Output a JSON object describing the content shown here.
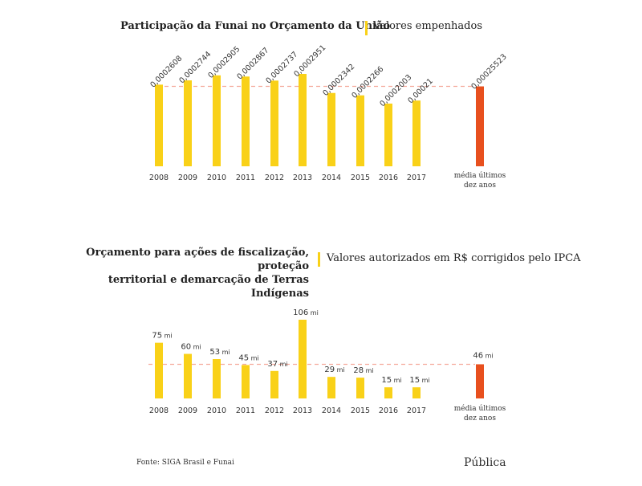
{
  "chart_data": [
    {
      "type": "bar",
      "title": "Participação da Funai no Orçamento da União",
      "subtitle": "Valores empenhados",
      "categories": [
        "2008",
        "2009",
        "2010",
        "2011",
        "2012",
        "2013",
        "2014",
        "2015",
        "2016",
        "2017"
      ],
      "values": [
        0.0002608,
        0.0002744,
        0.0002905,
        0.0002867,
        0.0002737,
        0.0002951,
        0.0002342,
        0.0002266,
        0.0002003,
        0.00021
      ],
      "labels": [
        "0,0002608",
        "0,0002744",
        "0,0002905",
        "0,0002867",
        "0,0002737",
        "0,0002951",
        "0,0002342",
        "0,0002266",
        "0,0002003",
        "0,00021"
      ],
      "average": {
        "label_line1": "média últimos",
        "label_line2": "dez anos",
        "value": 0.00025523,
        "value_label": "0,00025523"
      },
      "colors": {
        "bar": "#f9d118",
        "average": "#e8501e",
        "reference_line": "#f4a89a"
      }
    },
    {
      "type": "bar",
      "title_line1": "Orçamento para ações de fiscalização, proteção",
      "title_line2": "territorial e demarcação de Terras Indígenas",
      "subtitle": "Valores autorizados em R$ corrigidos pelo IPCA",
      "unit": "mi",
      "categories": [
        "2008",
        "2009",
        "2010",
        "2011",
        "2012",
        "2013",
        "2014",
        "2015",
        "2016",
        "2017"
      ],
      "values": [
        75,
        60,
        53,
        45,
        37,
        106,
        29,
        28,
        15,
        15
      ],
      "average": {
        "label_line1": "média últimos",
        "label_line2": "dez anos",
        "value": 46
      },
      "colors": {
        "bar": "#f9d118",
        "average": "#e8501e",
        "reference_line": "#f4a89a"
      }
    }
  ],
  "source": "Fonte: SIGA Brasil e Funai",
  "logo": "Pública"
}
